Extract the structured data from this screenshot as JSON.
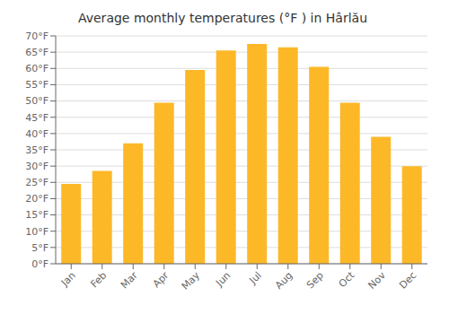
{
  "chart_data": {
    "type": "bar",
    "title": "Average monthly temperatures (°F ) in Hârlău",
    "categories": [
      "Jan",
      "Feb",
      "Mar",
      "Apr",
      "May",
      "Jun",
      "Jul",
      "Aug",
      "Sep",
      "Oct",
      "Nov",
      "Dec"
    ],
    "values": [
      24.5,
      28.5,
      37,
      49.5,
      59.5,
      65.5,
      67.5,
      66.5,
      60.5,
      49.5,
      39,
      30
    ],
    "color": "#FDB827",
    "ylim": [
      0,
      70
    ],
    "yticks": [
      {
        "value": 0,
        "label": "0°F"
      },
      {
        "value": 5,
        "label": "5°F"
      },
      {
        "value": 10,
        "label": "10°F"
      },
      {
        "value": 15,
        "label": "15°F"
      },
      {
        "value": 20,
        "label": "20°F"
      },
      {
        "value": 25,
        "label": "25°F"
      },
      {
        "value": 30,
        "label": "30°F"
      },
      {
        "value": 35,
        "label": "35°F"
      },
      {
        "value": 40,
        "label": "40°F"
      },
      {
        "value": 45,
        "label": "45°F"
      },
      {
        "value": 50,
        "label": "50°F"
      },
      {
        "value": 55,
        "label": "55°F"
      },
      {
        "value": 60,
        "label": "60°F"
      },
      {
        "value": 65,
        "label": "65°F"
      },
      {
        "value": 70,
        "label": "70°F"
      }
    ],
    "grid": true
  }
}
